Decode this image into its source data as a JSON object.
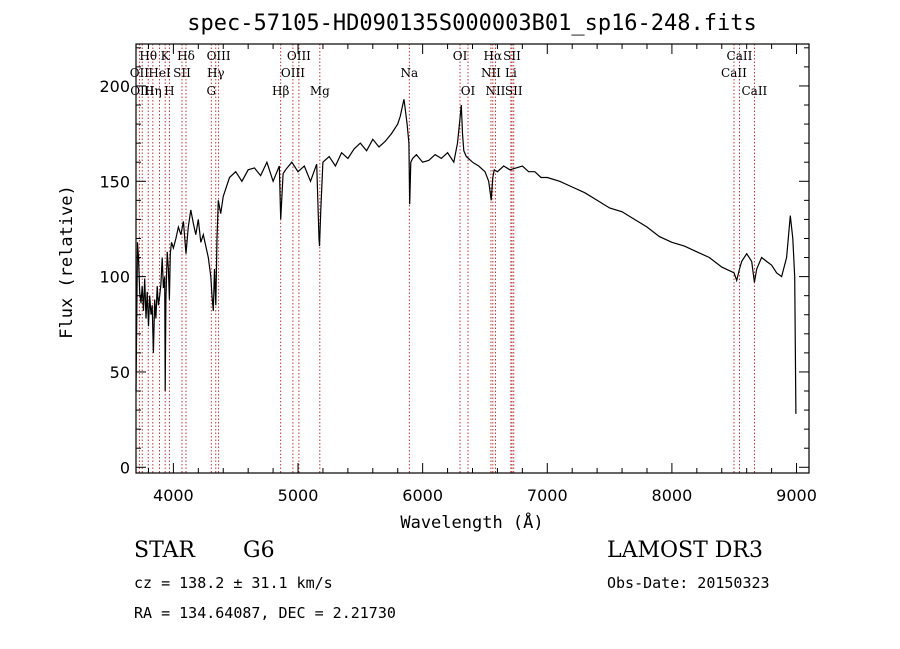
{
  "chart_data": {
    "type": "line",
    "title": "spec-57105-HD090135S000003B01_sp16-248.fits",
    "xlabel": "Wavelength (Å)",
    "ylabel": "Flux (relative)",
    "xlim": [
      3700,
      9100
    ],
    "ylim": [
      -3,
      222
    ],
    "x_ticks": [
      4000,
      5000,
      6000,
      7000,
      8000,
      9000
    ],
    "y_ticks": [
      0,
      50,
      100,
      150,
      200
    ],
    "series": [
      {
        "name": "spectrum",
        "x": [
          3700,
          3705,
          3712,
          3720,
          3730,
          3740,
          3750,
          3760,
          3770,
          3780,
          3790,
          3800,
          3810,
          3820,
          3830,
          3840,
          3850,
          3860,
          3870,
          3880,
          3890,
          3900,
          3910,
          3920,
          3930,
          3934,
          3940,
          3950,
          3960,
          3968,
          3975,
          3985,
          4000,
          4020,
          4040,
          4060,
          4080,
          4101,
          4120,
          4140,
          4160,
          4180,
          4200,
          4220,
          4240,
          4260,
          4280,
          4300,
          4310,
          4320,
          4330,
          4340,
          4350,
          4360,
          4380,
          4400,
          4450,
          4500,
          4550,
          4600,
          4650,
          4700,
          4750,
          4800,
          4850,
          4861,
          4880,
          4900,
          4950,
          5000,
          5050,
          5100,
          5150,
          5168,
          5172,
          5183,
          5200,
          5250,
          5300,
          5350,
          5400,
          5450,
          5500,
          5550,
          5600,
          5650,
          5700,
          5750,
          5800,
          5820,
          5840,
          5850,
          5860,
          5875,
          5890,
          5896,
          5905,
          5920,
          5950,
          6000,
          6050,
          6100,
          6150,
          6200,
          6250,
          6280,
          6300,
          6310,
          6320,
          6330,
          6350,
          6400,
          6450,
          6500,
          6530,
          6550,
          6563,
          6575,
          6600,
          6650,
          6700,
          6750,
          6800,
          6850,
          6900,
          6950,
          7000,
          7100,
          7200,
          7300,
          7400,
          7500,
          7600,
          7700,
          7800,
          7900,
          8000,
          8100,
          8200,
          8300,
          8400,
          8498,
          8520,
          8542,
          8560,
          8600,
          8640,
          8662,
          8680,
          8720,
          8760,
          8800,
          8840,
          8880,
          8920,
          8950,
          8970,
          8985,
          8995
        ],
        "values": [
          40,
          70,
          118,
          110,
          92,
          86,
          95,
          82,
          99,
          78,
          92,
          74,
          90,
          80,
          85,
          60,
          88,
          78,
          95,
          85,
          90,
          96,
          110,
          94,
          100,
          40,
          88,
          113,
          104,
          88,
          112,
          118,
          115,
          120,
          126,
          122,
          129,
          112,
          126,
          135,
          128,
          122,
          130,
          118,
          122,
          116,
          110,
          100,
          90,
          82,
          104,
          85,
          120,
          140,
          133,
          142,
          152,
          155,
          150,
          156,
          157,
          153,
          160,
          150,
          158,
          130,
          154,
          156,
          160,
          155,
          158,
          150,
          159,
          120,
          116,
          135,
          160,
          163,
          158,
          165,
          162,
          167,
          170,
          166,
          172,
          168,
          171,
          175,
          180,
          184,
          190,
          193,
          188,
          180,
          170,
          138,
          160,
          162,
          164,
          160,
          161,
          164,
          162,
          165,
          160,
          170,
          183,
          190,
          175,
          166,
          163,
          160,
          158,
          155,
          150,
          140,
          152,
          156,
          155,
          158,
          156,
          157,
          158,
          155,
          155,
          152,
          152,
          150,
          147,
          144,
          140,
          136,
          134,
          130,
          126,
          121,
          118,
          116,
          113,
          110,
          105,
          102,
          98,
          104,
          108,
          112,
          108,
          97,
          104,
          110,
          108,
          106,
          102,
          100,
          110,
          132,
          120,
          100,
          28
        ]
      }
    ],
    "lines": [
      {
        "name": "H-theta",
        "label": "Hθ",
        "x": 3798,
        "row": 0
      },
      {
        "name": "O-II",
        "label": "OII",
        "x": 3727,
        "row": 1
      },
      {
        "name": "O-III-a",
        "label": "OIII",
        "x": 3750,
        "row": 2
      },
      {
        "name": "H-eta",
        "label": "Hη",
        "x": 3835,
        "row": 2
      },
      {
        "name": "He-I",
        "label": "HeI",
        "x": 3889,
        "row": 1
      },
      {
        "name": "K",
        "label": "K",
        "x": 3934,
        "row": 0
      },
      {
        "name": "H",
        "label": "H",
        "x": 3968,
        "row": 2
      },
      {
        "name": "S-II-a",
        "label": "SII",
        "x": 4069,
        "row": 1
      },
      {
        "name": "H-delta",
        "label": "Hδ",
        "x": 4101,
        "row": 0
      },
      {
        "name": "O-III-b",
        "label": "OIII",
        "x": 4363,
        "row": 0
      },
      {
        "name": "H-gamma",
        "label": "Hγ",
        "x": 4340,
        "row": 1
      },
      {
        "name": "G",
        "label": "G",
        "x": 4304,
        "row": 2
      },
      {
        "name": "H-beta",
        "label": "Hβ",
        "x": 4861,
        "row": 2
      },
      {
        "name": "O-III-c",
        "label": "OIII",
        "x": 5007,
        "row": 0
      },
      {
        "name": "O-III-d",
        "label": "OIII",
        "x": 4959,
        "row": 1
      },
      {
        "name": "Mg",
        "label": "Mg",
        "x": 5175,
        "row": 2
      },
      {
        "name": "Na",
        "label": "Na",
        "x": 5893,
        "row": 1
      },
      {
        "name": "O-I-a",
        "label": "OI",
        "x": 6300,
        "row": 0
      },
      {
        "name": "O-I-b",
        "label": "OI",
        "x": 6364,
        "row": 2
      },
      {
        "name": "H-alpha",
        "label": "Hα",
        "x": 6563,
        "row": 0
      },
      {
        "name": "N-II-a",
        "label": "NII",
        "x": 6548,
        "row": 1
      },
      {
        "name": "N-II-b",
        "label": "NII",
        "x": 6584,
        "row": 2
      },
      {
        "name": "S-II-b",
        "label": "SII",
        "x": 6717,
        "row": 0
      },
      {
        "name": "Li",
        "label": "Li",
        "x": 6708,
        "row": 1
      },
      {
        "name": "S-II-c",
        "label": "SII",
        "x": 6731,
        "row": 2
      },
      {
        "name": "Ca-II-a",
        "label": "CaII",
        "x": 8542,
        "row": 0
      },
      {
        "name": "Ca-II-b",
        "label": "CaII",
        "x": 8498,
        "row": 1
      },
      {
        "name": "Ca-II-c",
        "label": "CaII",
        "x": 8662,
        "row": 2
      }
    ]
  },
  "info": {
    "object_class": "STAR",
    "subclass": "G6",
    "survey": "LAMOST DR3",
    "redshift": "cz = 138.2 ± 31.1 km/s",
    "obs_date": "Obs-Date: 20150323",
    "coords": "RA = 134.64087, DEC =   2.21730"
  },
  "colors": {
    "line_marker": "#b22222",
    "spectrum": "#000000",
    "axes": "#000000"
  }
}
